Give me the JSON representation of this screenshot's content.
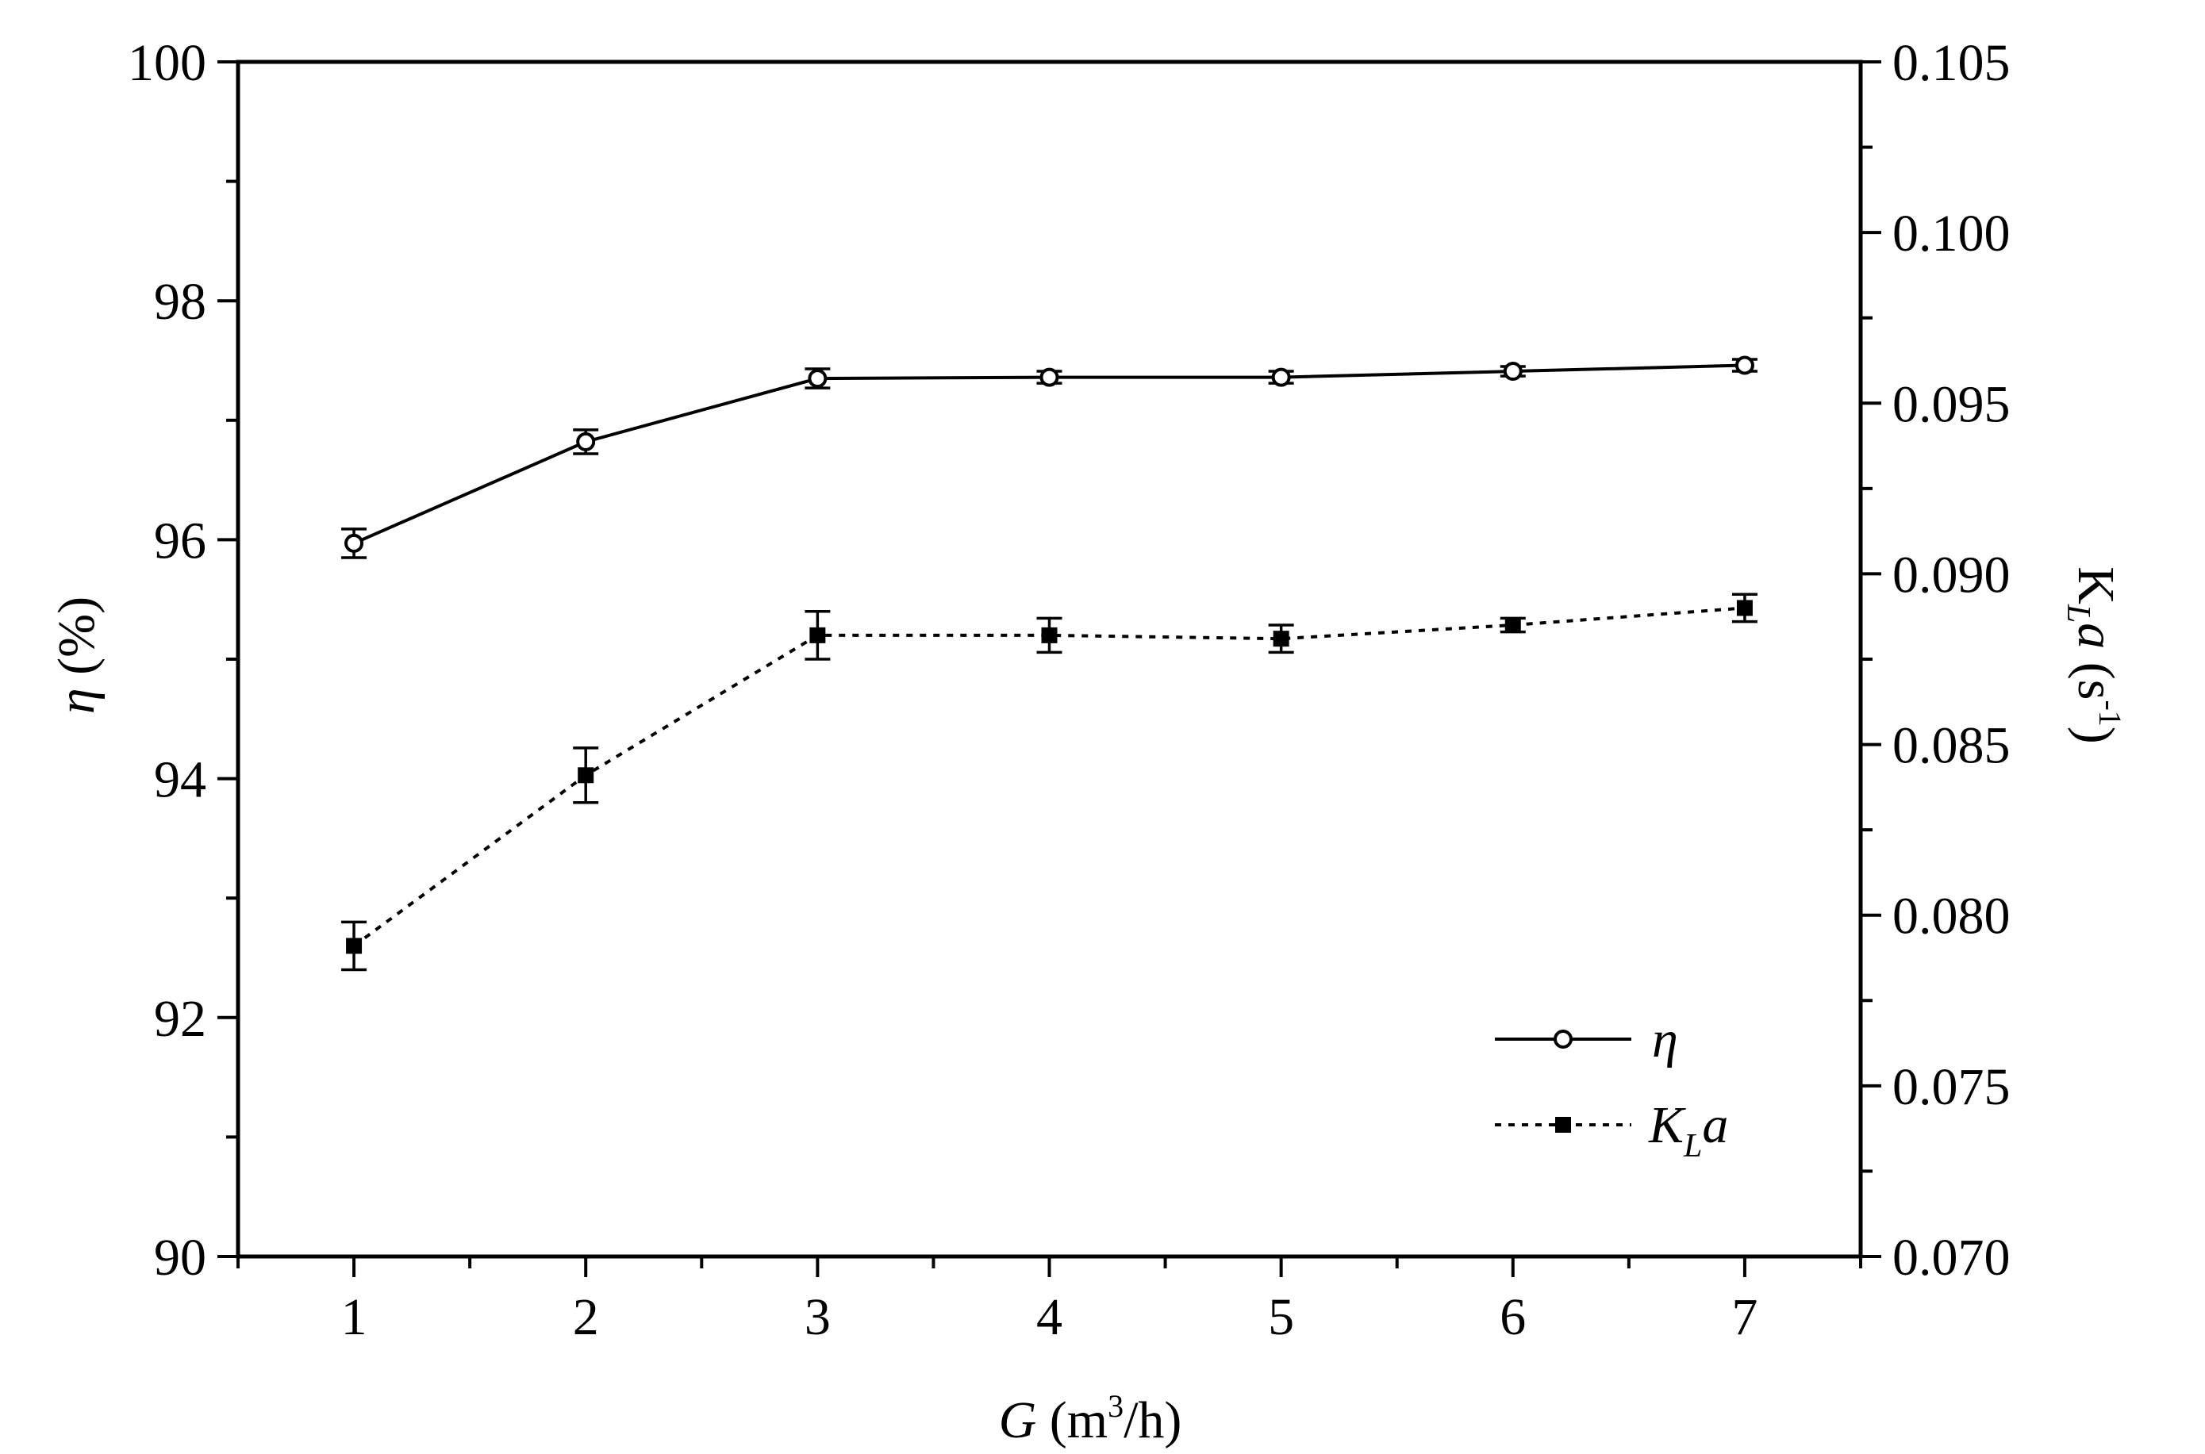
{
  "chart_data": {
    "type": "line",
    "x": [
      1,
      2,
      3,
      4,
      5,
      6,
      7
    ],
    "xlim": [
      0.5,
      7.5
    ],
    "ylim_left": [
      90,
      100
    ],
    "ylim_right": [
      0.07,
      0.105
    ],
    "x_ticks": [
      "1",
      "2",
      "3",
      "4",
      "5",
      "6",
      "7"
    ],
    "y_left_ticks": [
      "90",
      "92",
      "94",
      "96",
      "98",
      "100"
    ],
    "y_right_ticks": [
      "0.070",
      "0.075",
      "0.080",
      "0.085",
      "0.090",
      "0.095",
      "0.100",
      "0.105"
    ],
    "xlabel": {
      "var": "G",
      "unit_pre": " (m",
      "sup": "3",
      "unit_post": "/h)"
    },
    "ylabel_left": {
      "var": "η",
      "unit": " (%)"
    },
    "ylabel_right": {
      "main": "K",
      "sub": "L",
      "var": "a",
      "unit_pre": " (s",
      "sup": "-1",
      "unit_post": ")"
    },
    "legend_position": "bottom-right",
    "grid": false,
    "series": [
      {
        "name": "η",
        "axis": "left",
        "line": "solid",
        "marker": "open-circle",
        "values": [
          95.97,
          96.82,
          97.35,
          97.36,
          97.36,
          97.41,
          97.46
        ],
        "errors": [
          0.12,
          0.1,
          0.08,
          0.05,
          0.05,
          0.04,
          0.05
        ]
      },
      {
        "name_main": "K",
        "name_sub": "L",
        "name_var": "a",
        "axis": "right",
        "line": "dotted",
        "marker": "filled-square",
        "values": [
          0.0791,
          0.0841,
          0.0882,
          0.0882,
          0.0881,
          0.0885,
          0.089
        ],
        "errors": [
          0.0007,
          0.0008,
          0.0007,
          0.0005,
          0.0004,
          0.0002,
          0.0004
        ]
      }
    ]
  }
}
